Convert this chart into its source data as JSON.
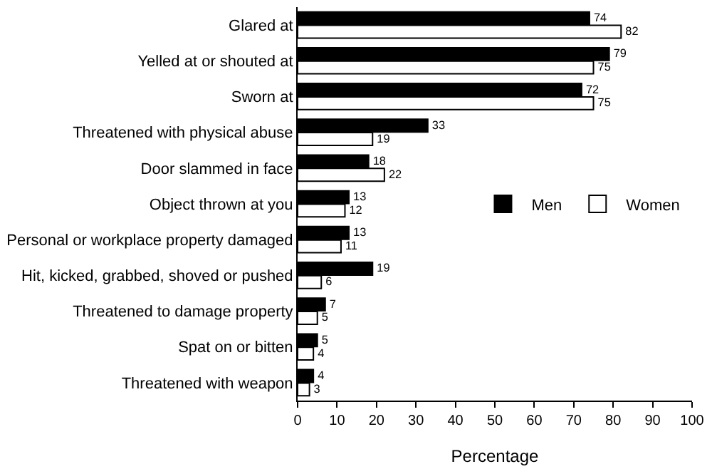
{
  "chart_data": {
    "type": "bar",
    "orientation": "horizontal",
    "xlabel": "Percentage",
    "categories": [
      "Glared at",
      "Yelled at or shouted at",
      "Sworn at",
      "Threatened with physical abuse",
      "Door slammed in face",
      "Object thrown at you",
      "Personal or workplace property damaged",
      "Hit, kicked, grabbed, shoved or pushed",
      "Threatened to damage property",
      "Spat on or bitten",
      "Threatened with weapon"
    ],
    "series": [
      {
        "name": "Men",
        "color": "#000000",
        "values": [
          74,
          79,
          72,
          33,
          18,
          13,
          13,
          19,
          7,
          5,
          4
        ]
      },
      {
        "name": "Women",
        "color": "#ffffff",
        "values": [
          82,
          75,
          75,
          19,
          22,
          12,
          11,
          6,
          5,
          4,
          3
        ]
      }
    ],
    "xlim": [
      0,
      100
    ],
    "xticks": [
      0,
      10,
      20,
      30,
      40,
      50,
      60,
      70,
      80,
      90,
      100
    ],
    "data_labels": true,
    "legend": "right"
  }
}
